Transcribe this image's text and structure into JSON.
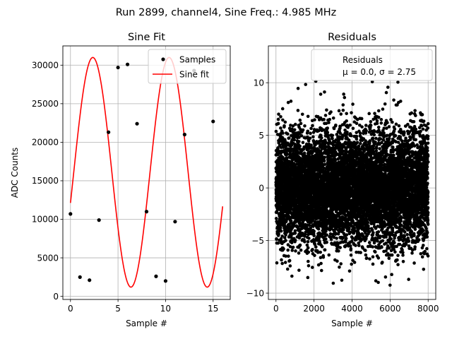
{
  "figure": {
    "suptitle": "Run 2899, channel4, Sine Freq.: 4.985 MHz"
  },
  "chart_data": [
    {
      "type": "line",
      "title": "Sine Fit",
      "xlabel": "Sample #",
      "ylabel": "ADC Counts",
      "xlim": [
        -0.8,
        16.8
      ],
      "ylim": [
        -400,
        32500
      ],
      "xticks": [
        0,
        5,
        10,
        15
      ],
      "yticks": [
        0,
        5000,
        10000,
        15000,
        20000,
        25000,
        30000
      ],
      "grid": true,
      "legend_position": "top-right",
      "series": [
        {
          "name": "Samples",
          "kind": "scatter",
          "color": "#000000",
          "x": [
            0,
            1,
            2,
            3,
            4,
            5,
            6,
            7,
            8,
            9,
            10,
            11,
            12,
            13,
            14,
            15
          ],
          "y": [
            10700,
            2500,
            2100,
            9900,
            21300,
            29700,
            30100,
            22400,
            11000,
            2600,
            2000,
            9700,
            21000,
            29300,
            30700,
            22700
          ]
        },
        {
          "name": "Sine fit",
          "kind": "line",
          "color": "#ff0000",
          "function": "sine",
          "amplitude": 14900,
          "offset": 16100,
          "period": 8.02,
          "phase": -0.27,
          "x_range": [
            0,
            16
          ]
        }
      ]
    },
    {
      "type": "scatter",
      "title": "Residuals",
      "xlabel": "Sample #",
      "ylabel": "",
      "xlim": [
        -400,
        8400
      ],
      "ylim": [
        -10.6,
        13.5
      ],
      "xticks": [
        0,
        2000,
        4000,
        6000,
        8000
      ],
      "yticks": [
        -10,
        -5,
        0,
        5,
        10
      ],
      "grid": true,
      "legend_position": "top-right",
      "legend": [
        "Residuals",
        "μ = 0.0, σ = 2.75"
      ],
      "series": [
        {
          "name": "Residuals",
          "color": "#000000",
          "points": 8000,
          "x_range": [
            0,
            8000
          ],
          "mean": 0.0,
          "std": 2.75,
          "min": -9.5,
          "max": 12.2
        }
      ]
    }
  ]
}
